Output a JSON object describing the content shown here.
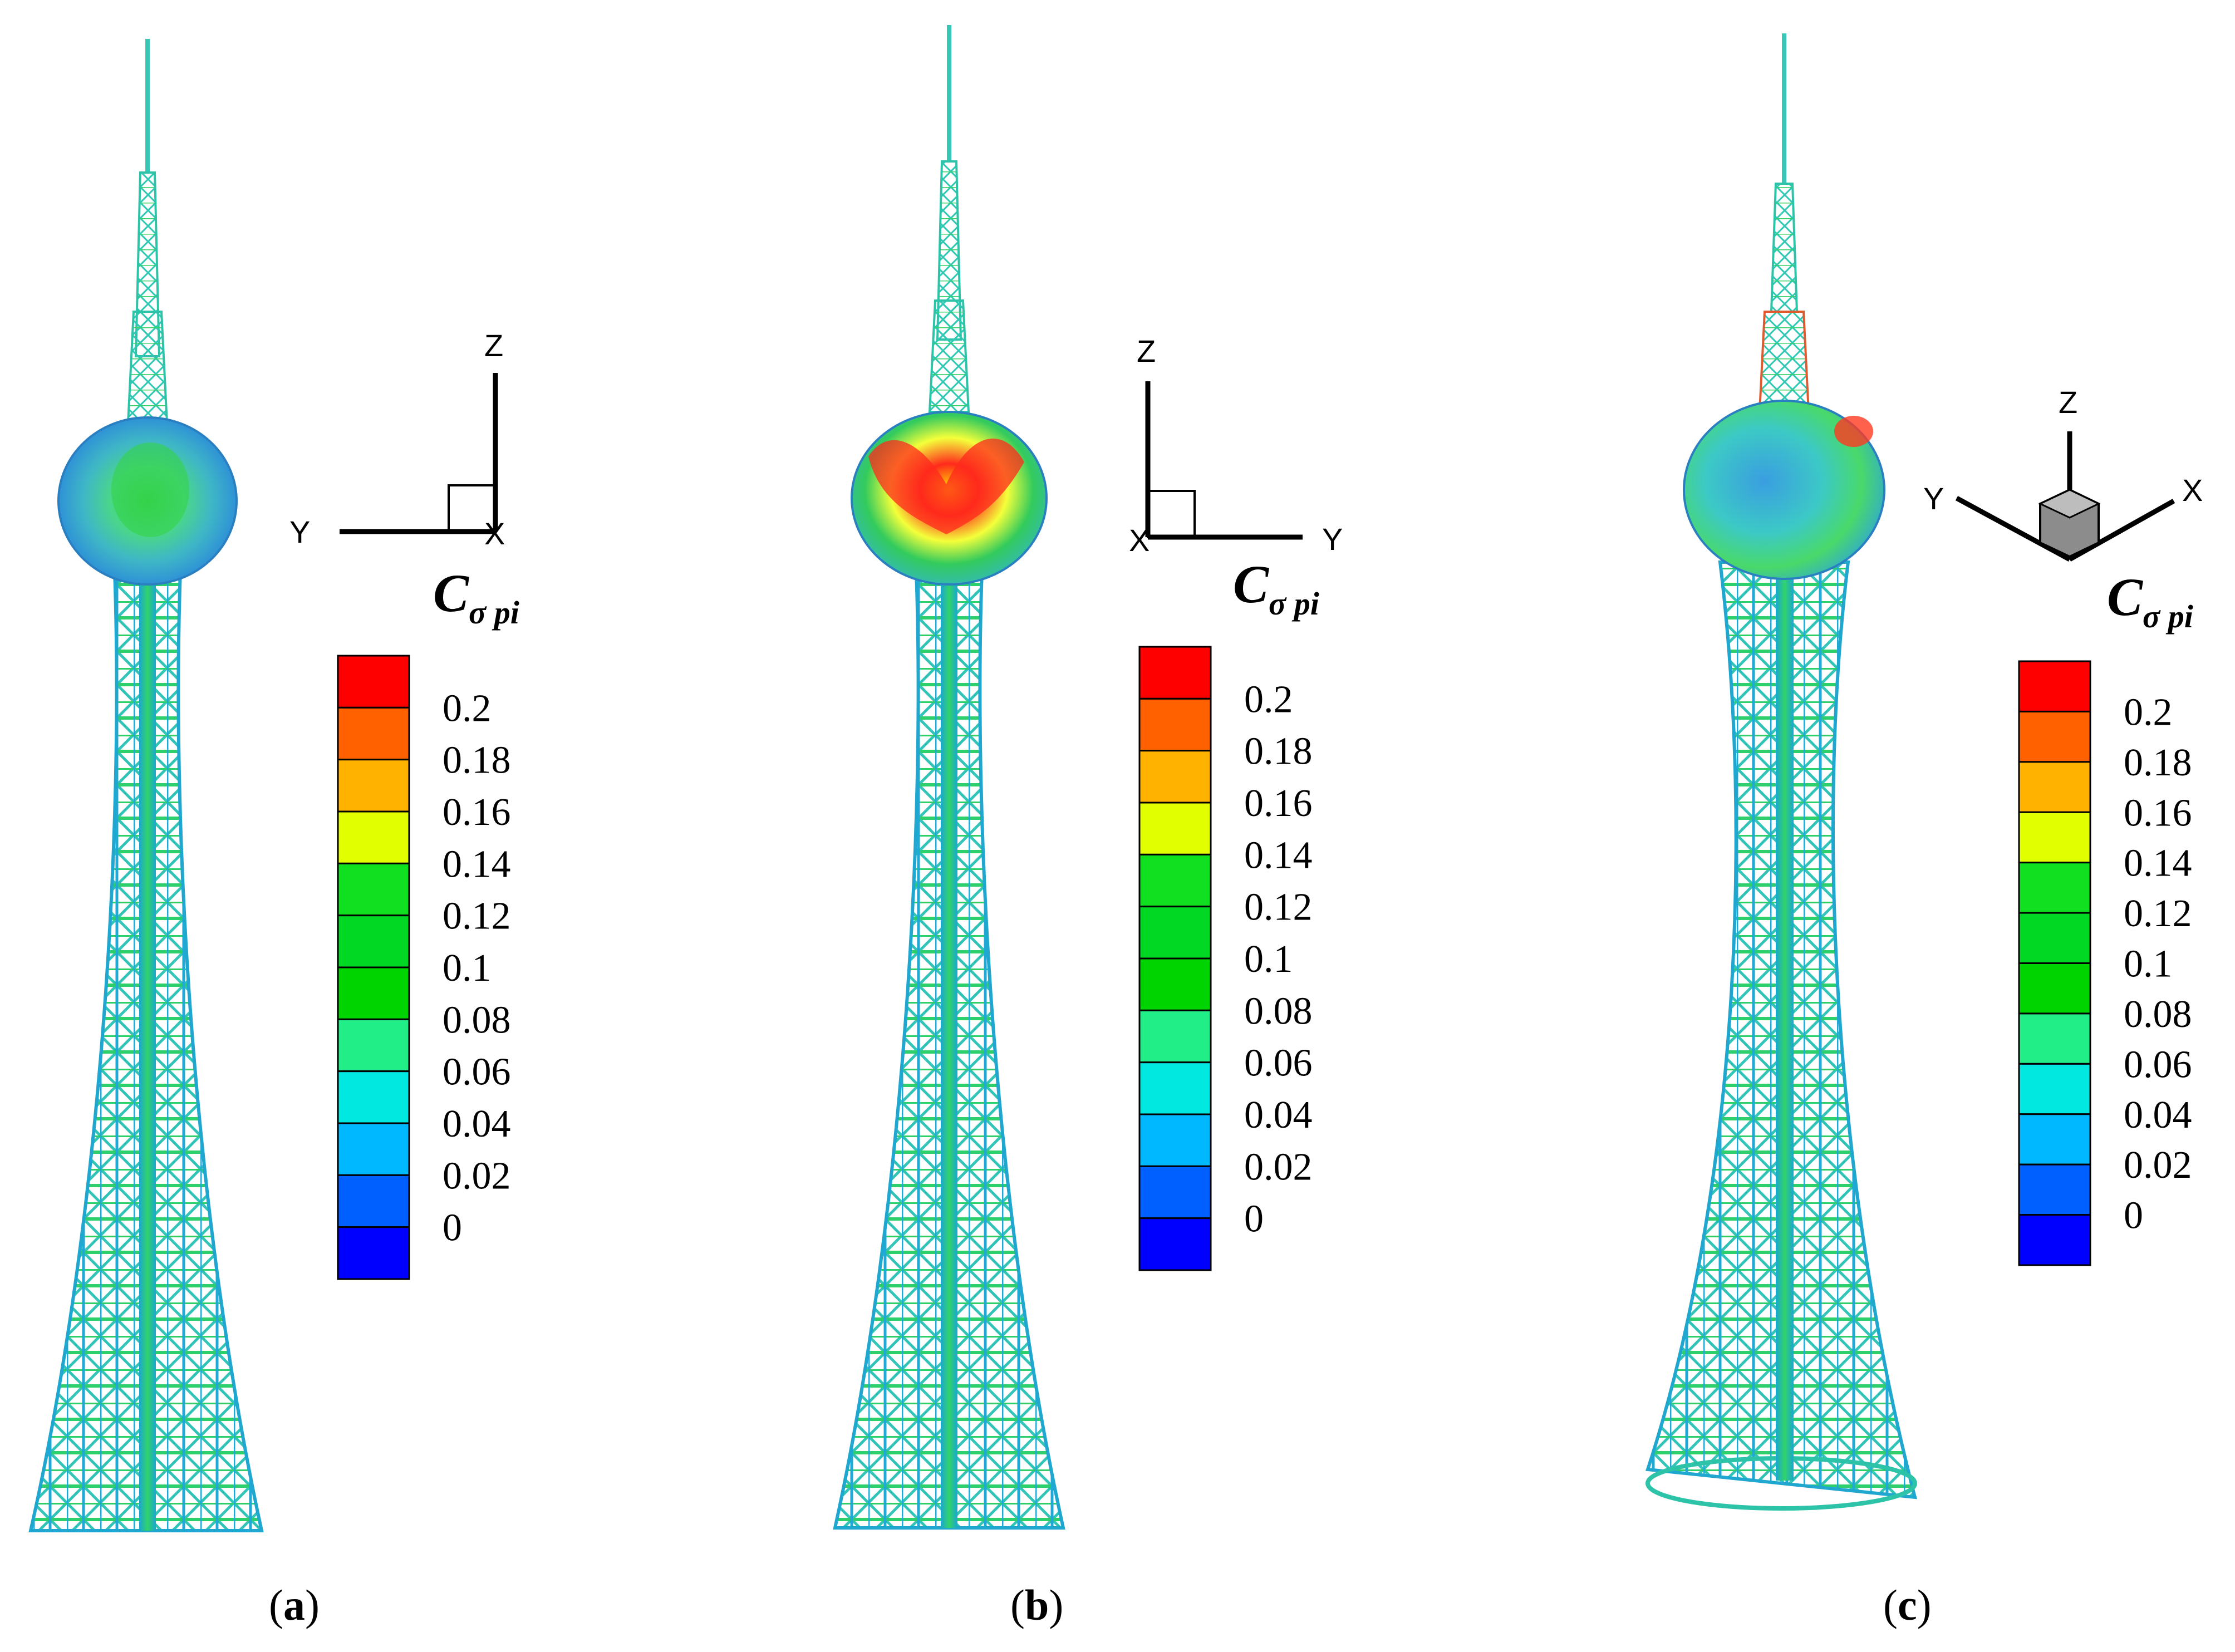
{
  "legend": {
    "title_main": "C",
    "title_sub": "σ pi",
    "ticks": [
      "0.2",
      "0.18",
      "0.16",
      "0.14",
      "0.12",
      "0.1",
      "0.08",
      "0.06",
      "0.04",
      "0.02",
      "0"
    ],
    "colors": [
      "#ff0000",
      "#ff6000",
      "#ffb300",
      "#e2ff00",
      "#10e020",
      "#00d824",
      "#00d400",
      "#22ee88",
      "#00e8e0",
      "#00b8ff",
      "#0060ff",
      "#0000ff"
    ]
  },
  "panels": [
    {
      "id": "a",
      "caption_open": "(",
      "caption_letter": "a",
      "caption_close": ")",
      "axes": {
        "up": "Z",
        "left": "Y",
        "right": "X",
        "style": "front-yz"
      },
      "ball_palette": [
        "#2a8cdb",
        "#3fb3c7",
        "#46d67d",
        "#2fcf3a"
      ]
    },
    {
      "id": "b",
      "caption_open": "(",
      "caption_letter": "b",
      "caption_close": ")",
      "axes": {
        "up": "Z",
        "left": "X",
        "right": "Y",
        "style": "side-xz"
      },
      "ball_palette": [
        "#33c860",
        "#ff2020",
        "#ffe000",
        "#3fb6c8"
      ]
    },
    {
      "id": "c",
      "caption_open": "(",
      "caption_letter": "c",
      "caption_close": ")",
      "axes": {
        "up": "Z",
        "left": "Y",
        "right": "X",
        "style": "iso"
      },
      "ball_palette": [
        "#3a9ee0",
        "#39c8c8",
        "#49d96a",
        "#ff3a20"
      ]
    }
  ]
}
